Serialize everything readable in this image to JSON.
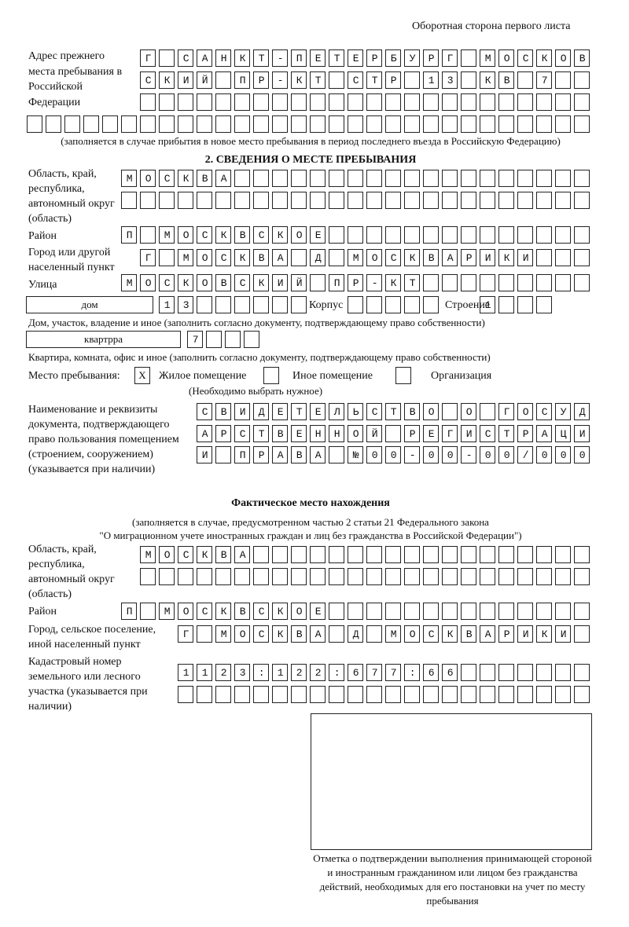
{
  "header": {
    "page_note": "Оборотная сторона первого листа"
  },
  "previous_address": {
    "label": "Адрес прежнего места пребывания в Российской Федерации",
    "rows": [
      "Г САНКТ-ПЕТЕРБУРГ МОСКОВ",
      "СКИЙ ПР-КТ СТР 13 КВ 7",
      "",
      ""
    ],
    "note": "(заполняется в случае прибытия в новое место пребывания в период последнего въезда в Российскую Федерацию)"
  },
  "section2": {
    "title": "2. СВЕДЕНИЯ О МЕСТЕ ПРЕБЫВАНИЯ",
    "region_label": "Область, край, республика, автономный округ (область)",
    "region_rows": [
      "МОСКВА",
      ""
    ],
    "district_label": "Район",
    "district": "П МОСКВСКОЕ",
    "city_label": "Город или другой населенный пункт",
    "city": "Г МОСКВА Д МОСКВАРИКИ",
    "street_label": "Улица",
    "street": "МОСКОВСКИЙ ПР-КТ",
    "house_type": "дом",
    "house_number": "13",
    "building_label": "Корпус",
    "building": "",
    "structure_label": "Строение",
    "structure": "1",
    "house_note": "Дом, участок, владение и иное (заполнить согласно документу, подтверждающему право собственности)",
    "apartment_type": "квартрра",
    "apartment_number": "7",
    "apartment_note": "Квартира, комната, офис и иное (заполнить согласно документу, подтверждающему право собственности)",
    "stay_place_label": "Место пребывания:",
    "stay_options": [
      {
        "label": "Жилое помещение",
        "mark": "X"
      },
      {
        "label": "Иное помещение",
        "mark": ""
      },
      {
        "label": "Организация",
        "mark": ""
      }
    ],
    "stay_note": "(Необходимо выбрать нужное)",
    "document_label": "Наименование и реквизиты документа, подтверждающего право пользования помещением (строением, сооружением) (указывается при наличии)",
    "document_rows": [
      "СВИДЕТЕЛЬСТВО О ГОСУД",
      "АРСТВЕННОЙ РЕГИСТРАЦИ",
      "И ПРАВА №00-00-00/000"
    ]
  },
  "actual_location": {
    "title": "Фактическое место нахождения",
    "note_line1": "(заполняется в случае, предусмотренном частью 2 статьи 21 Федерального закона",
    "note_line2": "\"О миграционном учете иностранных граждан и лиц без гражданства в Российской Федерации\")",
    "region_label": "Область, край, республика, автономный округ (область)",
    "region_rows": [
      "МОСКВА",
      ""
    ],
    "district_label": "Район",
    "district": "П МОСКВСКОЕ",
    "city_label": "Город, сельское поселение, иной населенный пункт",
    "city": "Г МОСКВА Д МОСКВАРИКИ",
    "cadastral_label": "Кадастровый номер земельного или лесного участка (указывается при наличии)",
    "cadastral_rows": [
      "1123:122:677:66",
      ""
    ]
  },
  "confirmation": {
    "caption": "Отметка о подтверждении выполнения принимающей стороной и иностранным гражданином или лицом без гражданства действий, необходимых для его постановки на учет по месту пребывания"
  }
}
